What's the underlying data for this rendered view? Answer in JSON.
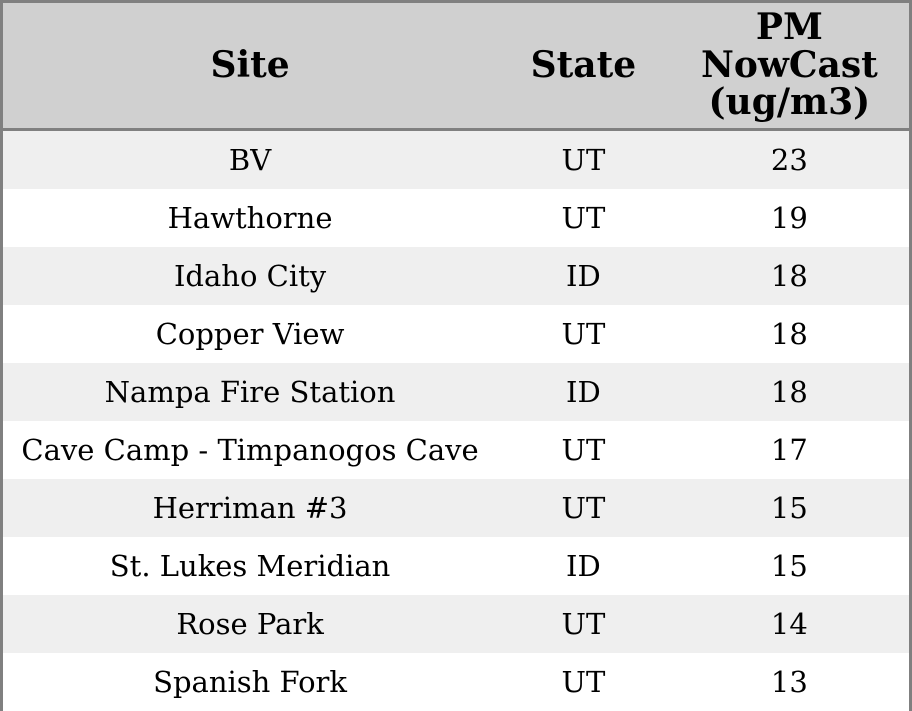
{
  "colors": {
    "header_bg": "#d0d0d0",
    "row_odd_bg": "#efefef",
    "row_even_bg": "#ffffff",
    "border": "#808080",
    "text": "#000000"
  },
  "chart_data": {
    "type": "table",
    "columns": [
      "Site",
      "State",
      "PM NowCast (ug/m3)"
    ],
    "rows": [
      [
        "BV",
        "UT",
        "23"
      ],
      [
        "Hawthorne",
        "UT",
        "19"
      ],
      [
        "Idaho City",
        "ID",
        "18"
      ],
      [
        "Copper View",
        "UT",
        "18"
      ],
      [
        "Nampa Fire Station",
        "ID",
        "18"
      ],
      [
        "Cave Camp - Timpanogos Cave",
        "UT",
        "17"
      ],
      [
        "Herriman #3",
        "UT",
        "15"
      ],
      [
        "St. Lukes Meridian",
        "ID",
        "15"
      ],
      [
        "Rose Park",
        "UT",
        "14"
      ],
      [
        "Spanish Fork",
        "UT",
        "13"
      ]
    ]
  }
}
